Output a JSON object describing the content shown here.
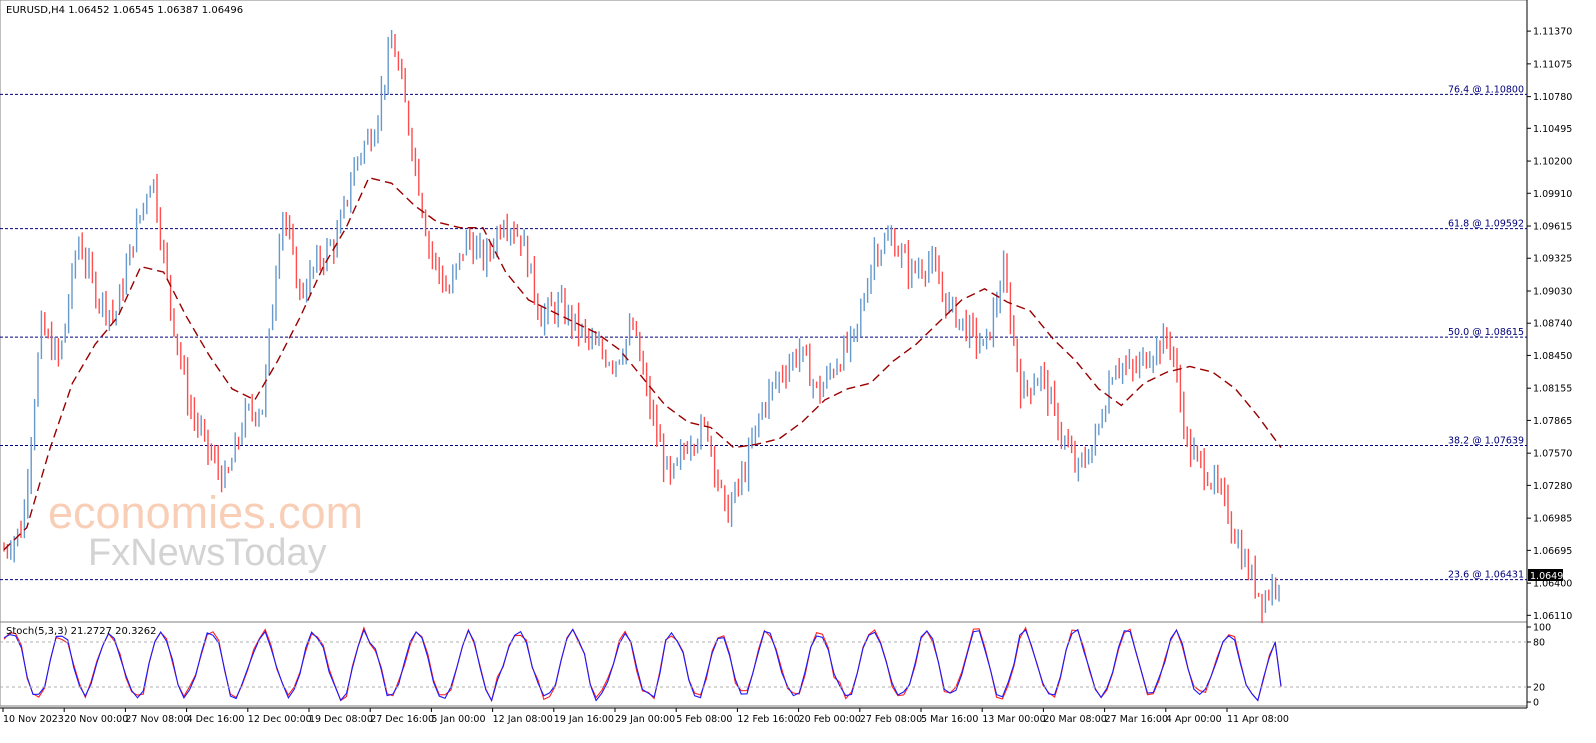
{
  "header": {
    "symbol_line": "EURUSD,H4  1.06452 1.06545 1.06387 1.06496",
    "stoch_line": "Stoch(5,3,3) 21.2727 20.3262"
  },
  "watermark": {
    "line1": "economies.com",
    "line2": "FxNewsToday"
  },
  "colors": {
    "bull": "#6699cc",
    "bear": "#ff4d4d",
    "ma": "#990000",
    "fib": "#000080",
    "stoch_main": "#1a1aff",
    "stoch_signal": "#ff2020"
  },
  "price_axis": {
    "ticks": [
      "1.11370",
      "1.11075",
      "1.10780",
      "1.10495",
      "1.10200",
      "1.09910",
      "1.09615",
      "1.09325",
      "1.09030",
      "1.08740",
      "1.08450",
      "1.08155",
      "1.07865",
      "1.07570",
      "1.07280",
      "1.06985",
      "1.06695",
      "1.06400",
      "1.06110"
    ],
    "current_price": "1.06496"
  },
  "stoch_axis": {
    "ticks": [
      "100",
      "80",
      "20",
      "0"
    ]
  },
  "time_axis": {
    "labels": [
      "10 Nov 2023",
      "20 Nov 00:00",
      "27 Nov 08:00",
      "4 Dec 16:00",
      "12 Dec 00:00",
      "19 Dec 08:00",
      "27 Dec 16:00",
      "5 Jan 00:00",
      "12 Jan 08:00",
      "19 Jan 16:00",
      "29 Jan 00:00",
      "5 Feb 08:00",
      "12 Feb 16:00",
      "20 Feb 00:00",
      "27 Feb 08:00",
      "5 Mar 16:00",
      "13 Mar 00:00",
      "20 Mar 08:00",
      "27 Mar 16:00",
      "4 Apr 00:00",
      "11 Apr 08:00"
    ]
  },
  "fib_levels": [
    {
      "label": "76.4 @ 1.10800",
      "price": 1.108
    },
    {
      "label": "61.8 @ 1.09592",
      "price": 1.09592
    },
    {
      "label": "50.0 @ 1.08615",
      "price": 1.08615
    },
    {
      "label": "38.2 @ 1.07639",
      "price": 1.07639
    },
    {
      "label": "23.6 @ 1.06431",
      "price": 1.06431
    }
  ],
  "chart_data": {
    "type": "line",
    "title": "EURUSD,H4",
    "ylim": [
      1.0605,
      1.1165
    ],
    "x_range": [
      "10 Nov 2023",
      "12 Apr 2024"
    ],
    "price_path": [
      {
        "x": "10 Nov 2023",
        "y": 1.067
      },
      {
        "x": "13 Nov",
        "y": 1.069
      },
      {
        "x": "14 Nov",
        "y": 1.087
      },
      {
        "x": "16 Nov",
        "y": 1.084
      },
      {
        "x": "20 Nov",
        "y": 1.095
      },
      {
        "x": "22 Nov",
        "y": 1.09
      },
      {
        "x": "24 Nov",
        "y": 1.088
      },
      {
        "x": "27 Nov",
        "y": 1.095
      },
      {
        "x": "29 Nov",
        "y": 1.101
      },
      {
        "x": "1 Dec",
        "y": 1.089
      },
      {
        "x": "5 Dec",
        "y": 1.08
      },
      {
        "x": "7 Dec",
        "y": 1.076
      },
      {
        "x": "8 Dec",
        "y": 1.073
      },
      {
        "x": "11 Dec",
        "y": 1.079
      },
      {
        "x": "13 Dec",
        "y": 1.08
      },
      {
        "x": "14 Dec",
        "y": 1.098
      },
      {
        "x": "15 Dec",
        "y": 1.09
      },
      {
        "x": "18 Dec",
        "y": 1.093
      },
      {
        "x": "20 Dec",
        "y": 1.095
      },
      {
        "x": "22 Dec",
        "y": 1.102
      },
      {
        "x": "26 Dec",
        "y": 1.105
      },
      {
        "x": "28 Dec",
        "y": 1.113
      },
      {
        "x": "29 Dec",
        "y": 1.104
      },
      {
        "x": "2 Jan",
        "y": 1.094
      },
      {
        "x": "3 Jan",
        "y": 1.09
      },
      {
        "x": "5 Jan",
        "y": 1.095
      },
      {
        "x": "9 Jan",
        "y": 1.093
      },
      {
        "x": "11 Jan",
        "y": 1.097
      },
      {
        "x": "15 Jan",
        "y": 1.095
      },
      {
        "x": "17 Jan",
        "y": 1.088
      },
      {
        "x": "19 Jan",
        "y": 1.089
      },
      {
        "x": "23 Jan",
        "y": 1.087
      },
      {
        "x": "25 Jan",
        "y": 1.085
      },
      {
        "x": "29 Jan",
        "y": 1.084
      },
      {
        "x": "31 Jan",
        "y": 1.087
      },
      {
        "x": "2 Feb",
        "y": 1.079
      },
      {
        "x": "5 Feb",
        "y": 1.073
      },
      {
        "x": "7 Feb",
        "y": 1.077
      },
      {
        "x": "9 Feb",
        "y": 1.078
      },
      {
        "x": "13 Feb",
        "y": 1.07
      },
      {
        "x": "15 Feb",
        "y": 1.074
      },
      {
        "x": "20 Feb",
        "y": 1.08
      },
      {
        "x": "22 Feb",
        "y": 1.083
      },
      {
        "x": "26 Feb",
        "y": 1.085
      },
      {
        "x": "28 Feb",
        "y": 1.081
      },
      {
        "x": "1 Mar",
        "y": 1.084
      },
      {
        "x": "5 Mar",
        "y": 1.086
      },
      {
        "x": "7 Mar",
        "y": 1.094
      },
      {
        "x": "8 Mar",
        "y": 1.095
      },
      {
        "x": "11 Mar",
        "y": 1.092
      },
      {
        "x": "12 Mar",
        "y": 1.093
      },
      {
        "x": "14 Mar",
        "y": 1.089
      },
      {
        "x": "18 Mar",
        "y": 1.087
      },
      {
        "x": "20 Mar",
        "y": 1.085
      },
      {
        "x": "21 Mar",
        "y": 1.092
      },
      {
        "x": "22 Mar",
        "y": 1.081
      },
      {
        "x": "26 Mar",
        "y": 1.083
      },
      {
        "x": "28 Mar",
        "y": 1.078
      },
      {
        "x": "29 Mar",
        "y": 1.074
      },
      {
        "x": "2 Apr",
        "y": 1.077
      },
      {
        "x": "3 Apr",
        "y": 1.084
      },
      {
        "x": "5 Apr",
        "y": 1.083
      },
      {
        "x": "8 Apr",
        "y": 1.085
      },
      {
        "x": "10 Apr",
        "y": 1.086
      },
      {
        "x": "10 Apr 16:00",
        "y": 1.076
      },
      {
        "x": "11 Apr",
        "y": 1.074
      },
      {
        "x": "11 Apr 16:00",
        "y": 1.071
      },
      {
        "x": "12 Apr",
        "y": 1.066
      },
      {
        "x": "12 Apr 08:00",
        "y": 1.0625
      },
      {
        "x": "12 Apr 12:00",
        "y": 1.06496
      }
    ],
    "ma_path": [
      {
        "x": "10 Nov 2023",
        "y": 1.067
      },
      {
        "x": "13 Nov",
        "y": 1.069
      },
      {
        "x": "15 Nov",
        "y": 1.076
      },
      {
        "x": "17 Nov",
        "y": 1.082
      },
      {
        "x": "21 Nov",
        "y": 1.0855
      },
      {
        "x": "24 Nov",
        "y": 1.088
      },
      {
        "x": "28 Nov",
        "y": 1.0925
      },
      {
        "x": "30 Nov",
        "y": 1.092
      },
      {
        "x": "4 Dec",
        "y": 1.088
      },
      {
        "x": "6 Dec",
        "y": 1.0845
      },
      {
        "x": "8 Dec",
        "y": 1.0815
      },
      {
        "x": "12 Dec",
        "y": 1.0805
      },
      {
        "x": "14 Dec",
        "y": 1.084
      },
      {
        "x": "18 Dec",
        "y": 1.088
      },
      {
        "x": "20 Dec",
        "y": 1.0925
      },
      {
        "x": "22 Dec",
        "y": 1.096
      },
      {
        "x": "27 Dec",
        "y": 1.1005
      },
      {
        "x": "29 Dec",
        "y": 1.1
      },
      {
        "x": "3 Jan",
        "y": 1.098
      },
      {
        "x": "5 Jan",
        "y": 1.0965
      },
      {
        "x": "10 Jan",
        "y": 1.096
      },
      {
        "x": "12 Jan",
        "y": 1.096
      },
      {
        "x": "16 Jan",
        "y": 1.092
      },
      {
        "x": "18 Jan",
        "y": 1.0895
      },
      {
        "x": "22 Jan",
        "y": 1.0885
      },
      {
        "x": "24 Jan",
        "y": 1.0875
      },
      {
        "x": "26 Jan",
        "y": 1.0865
      },
      {
        "x": "30 Jan",
        "y": 1.085
      },
      {
        "x": "1 Feb",
        "y": 1.0825
      },
      {
        "x": "5 Feb",
        "y": 1.08
      },
      {
        "x": "7 Feb",
        "y": 1.0785
      },
      {
        "x": "9 Feb",
        "y": 1.078
      },
      {
        "x": "13 Feb",
        "y": 1.0762
      },
      {
        "x": "15 Feb",
        "y": 1.0765
      },
      {
        "x": "19 Feb",
        "y": 1.077
      },
      {
        "x": "21 Feb",
        "y": 1.0785
      },
      {
        "x": "23 Feb",
        "y": 1.0805
      },
      {
        "x": "27 Feb",
        "y": 1.0815
      },
      {
        "x": "29 Feb",
        "y": 1.082
      },
      {
        "x": "4 Mar",
        "y": 1.084
      },
      {
        "x": "6 Mar",
        "y": 1.0855
      },
      {
        "x": "8 Mar",
        "y": 1.0875
      },
      {
        "x": "12 Mar",
        "y": 1.0895
      },
      {
        "x": "14 Mar",
        "y": 1.0905
      },
      {
        "x": "18 Mar",
        "y": 1.0893
      },
      {
        "x": "20 Mar",
        "y": 1.0885
      },
      {
        "x": "22 Mar",
        "y": 1.086
      },
      {
        "x": "26 Mar",
        "y": 1.084
      },
      {
        "x": "28 Mar",
        "y": 1.0815
      },
      {
        "x": "1 Apr",
        "y": 1.08
      },
      {
        "x": "3 Apr",
        "y": 1.082
      },
      {
        "x": "5 Apr",
        "y": 1.083
      },
      {
        "x": "9 Apr",
        "y": 1.0835
      },
      {
        "x": "10 Apr",
        "y": 1.083
      },
      {
        "x": "11 Apr",
        "y": 1.0815
      },
      {
        "x": "12 Apr",
        "y": 1.079
      },
      {
        "x": "12 Apr 12:00",
        "y": 1.0762
      }
    ],
    "stochastic": {
      "ylim": [
        0,
        100
      ],
      "levels": [
        20,
        80
      ],
      "main": 21.2727,
      "signal": 20.3262
    }
  }
}
